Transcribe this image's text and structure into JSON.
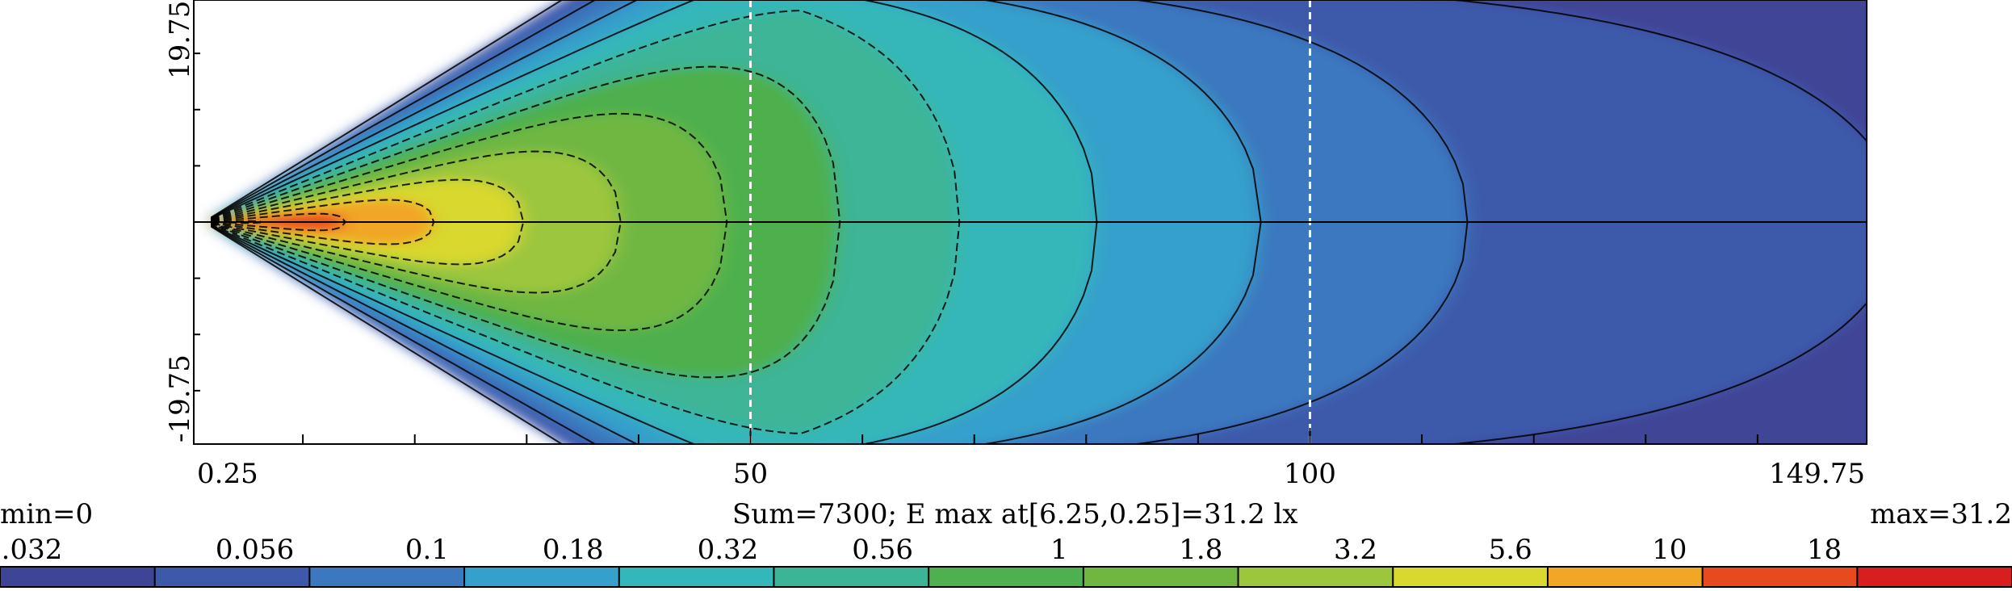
{
  "chart_data": {
    "type": "heatmap",
    "x_range": [
      0.25,
      149.75
    ],
    "y_range": [
      -19.75,
      19.75
    ],
    "x_tick_labels": [
      "0.25",
      "50",
      "100",
      "149.75"
    ],
    "x_tick_values": [
      0.25,
      50,
      100,
      149.75
    ],
    "y_tick_labels": [
      "19.75",
      "-19.75"
    ],
    "y_tick_values": [
      19.75,
      -19.75
    ],
    "reference_lines_x": [
      50,
      100
    ],
    "reference_line_y": 0,
    "summary_text": "Sum=7300; E max at[6.25,0.25]=31.2 lx",
    "min_label": "min=0",
    "max_label": "max=31.2",
    "maximum_point": {
      "x": 6.25,
      "y": 0.25,
      "value": 31.2
    },
    "colorbar": {
      "tick_labels": [
        "0.032",
        "0.056",
        "0.1",
        "0.18",
        "0.32",
        "0.56",
        "1",
        "1.8",
        "3.2",
        "5.6",
        "10",
        "18"
      ],
      "tick_values": [
        0.032,
        0.056,
        0.1,
        0.18,
        0.32,
        0.56,
        1,
        1.8,
        3.2,
        5.6,
        10,
        18
      ],
      "colors": [
        "#3f4596",
        "#3d5aaa",
        "#3b78bf",
        "#35a0cb",
        "#34b7ba",
        "#3cb596",
        "#4eb04e",
        "#70b742",
        "#9cc63c",
        "#d8d82e",
        "#f1a626",
        "#e84a20",
        "#d81e1e"
      ]
    },
    "contour_levels": [
      0.032,
      0.056,
      0.1,
      0.18,
      0.32,
      0.56,
      1,
      1.8,
      3.2,
      5.6,
      10,
      18
    ]
  }
}
